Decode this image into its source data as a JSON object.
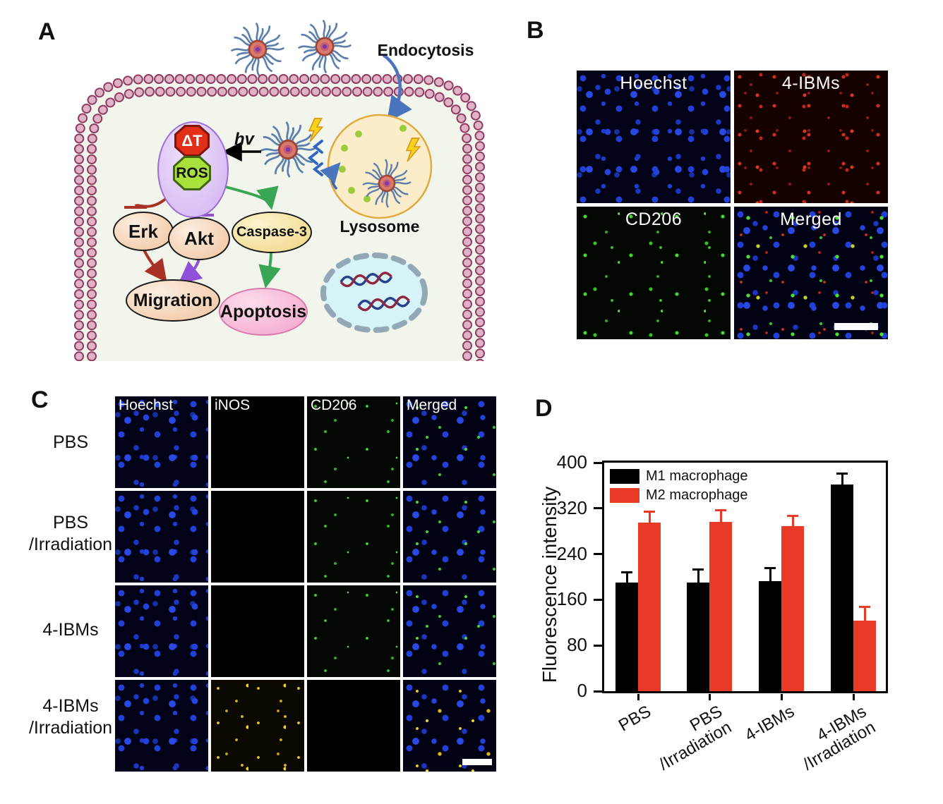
{
  "panels": {
    "a_label": "A",
    "b_label": "B",
    "c_label": "C",
    "d_label": "D"
  },
  "panel_a": {
    "endocytosis": "Endocytosis",
    "hv": "hv",
    "delta_t": "ΔT",
    "ros": "ROS",
    "erk": "Erk",
    "akt": "Akt",
    "caspase3": "Caspase-3",
    "migration": "Migration",
    "apoptosis": "Apoptosis",
    "lysosome": "Lysosome",
    "colors": {
      "membrane_bead": "#cf93ad",
      "membrane_outline": "#8f3b62",
      "cytoplasm": "#f1f5ec",
      "lysosome_fill": "#fcedca",
      "lysosome_border": "#e2a93e",
      "inhibit_red": "#a93226",
      "inhibit_purple": "#9150d8",
      "activate_green": "#3ba556",
      "endocytosis_blue": "#4a74bd"
    }
  },
  "panel_b": {
    "image_labels": [
      "Hoechst",
      "4-IBMs",
      "CD206",
      "Merged"
    ],
    "channel_colors": {
      "hoechst": "#2240d6",
      "ibms": "#d2301c",
      "cd206": "#3fd32a"
    }
  },
  "panel_c": {
    "column_headers": [
      "Hoechst",
      "iNOS",
      "CD206",
      "Merged"
    ],
    "row_labels": [
      [
        "PBS"
      ],
      [
        "PBS",
        "/Irradiation"
      ],
      [
        "4-IBMs"
      ],
      [
        "4-IBMs",
        "/Irradiation"
      ]
    ],
    "channel_colors": {
      "hoechst": "#2240d6",
      "inos": "#e8c81e",
      "cd206": "#3fd32a"
    }
  },
  "chart_data": {
    "type": "bar",
    "title": "",
    "xlabel": "",
    "ylabel": "Fluorescence intensity",
    "ylim": [
      0,
      400
    ],
    "yticks": [
      0,
      80,
      160,
      240,
      320,
      400
    ],
    "categories": [
      [
        "PBS"
      ],
      [
        "PBS",
        "/Irradiation"
      ],
      [
        "4-IBMs"
      ],
      [
        "4-IBMs",
        "/Irradiation"
      ]
    ],
    "series": [
      {
        "name": "M1 macrophage",
        "color": "#000000",
        "values": [
          190,
          190,
          192,
          362
        ],
        "errors": [
          18,
          23,
          24,
          20
        ]
      },
      {
        "name": "M2 macrophage",
        "color": "#e93a28",
        "values": [
          295,
          296,
          289,
          124
        ],
        "errors": [
          20,
          21,
          19,
          25
        ]
      }
    ],
    "legend_position": "top-left",
    "grid": false,
    "error_bars": "upper"
  }
}
